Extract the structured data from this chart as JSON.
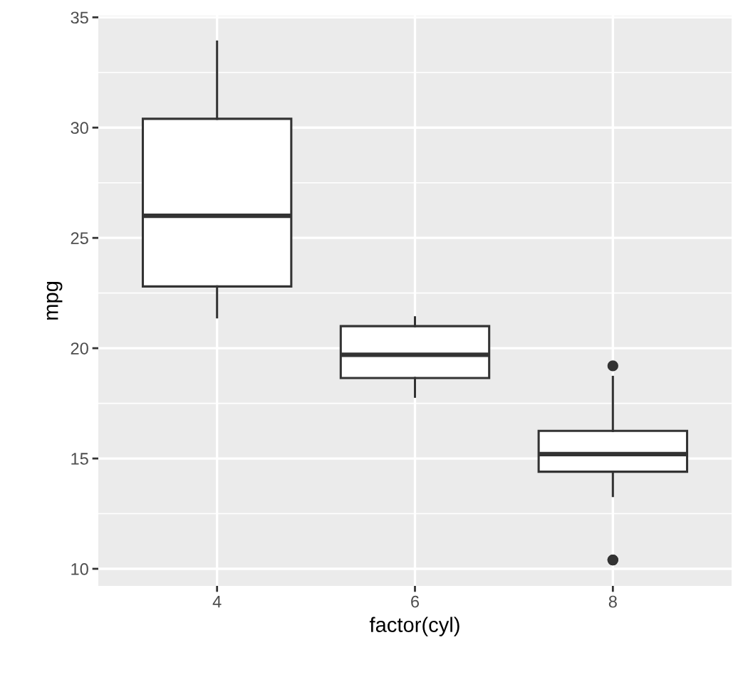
{
  "chart_data": {
    "type": "box",
    "xlabel": "factor(cyl)",
    "ylabel": "mpg",
    "categories": [
      "4",
      "6",
      "8"
    ],
    "boxes": [
      {
        "low": 21.4,
        "q1": 22.8,
        "median": 26.0,
        "q3": 30.4,
        "high": 33.9
      },
      {
        "low": 17.8,
        "q1": 18.65,
        "median": 19.7,
        "q3": 21.0,
        "high": 21.4
      },
      {
        "low": 13.3,
        "q1": 14.4,
        "median": 15.2,
        "q3": 16.25,
        "high": 18.7,
        "outliers": [
          10.4,
          10.4,
          19.2
        ]
      }
    ],
    "ylim": [
      9.225,
      35.075
    ],
    "yticks": [
      10,
      15,
      20,
      25,
      30,
      35
    ],
    "grid": true
  }
}
